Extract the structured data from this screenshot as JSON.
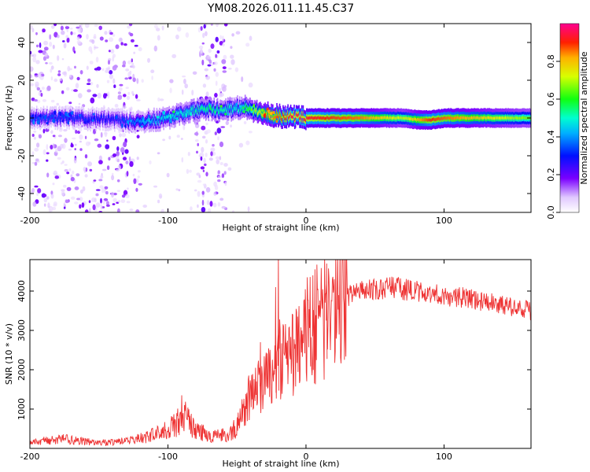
{
  "title": "YM08.2026.011.11.45.C37",
  "chart_data": [
    {
      "type": "heatmap",
      "name": "spectrogram",
      "xlabel": "Height of straight line (km)",
      "ylabel": "Frequency (Hz)",
      "xlim": [
        -200,
        163
      ],
      "ylim": [
        -50,
        50
      ],
      "xticks": [
        -200,
        -100,
        0,
        100
      ],
      "yticks": [
        -40,
        -20,
        0,
        20,
        40
      ],
      "colorbar": {
        "label": "Normalized spectral amplitude",
        "range": [
          0,
          1
        ],
        "ticks": [
          "0.0",
          "0.2",
          "0.4",
          "0.6",
          "0.8"
        ],
        "tick_values": [
          0,
          0.2,
          0.4,
          0.6,
          0.8
        ]
      },
      "band_center": [
        {
          "x": -200,
          "f": 0
        },
        {
          "x": -170,
          "f": 0
        },
        {
          "x": -140,
          "f": -1
        },
        {
          "x": -120,
          "f": -2
        },
        {
          "x": -100,
          "f": 0
        },
        {
          "x": -85,
          "f": 3
        },
        {
          "x": -75,
          "f": 5
        },
        {
          "x": -60,
          "f": 4
        },
        {
          "x": -45,
          "f": 6
        },
        {
          "x": -35,
          "f": 3
        },
        {
          "x": -20,
          "f": 1
        },
        {
          "x": 0,
          "f": 0
        },
        {
          "x": 30,
          "f": 0
        },
        {
          "x": 70,
          "f": 0
        },
        {
          "x": 80,
          "f": -1
        },
        {
          "x": 90,
          "f": -1
        },
        {
          "x": 100,
          "f": 0
        },
        {
          "x": 163,
          "f": 0
        }
      ],
      "band_amplitude": [
        {
          "x": -200,
          "a": 0.35
        },
        {
          "x": -140,
          "a": 0.3
        },
        {
          "x": -110,
          "a": 0.45
        },
        {
          "x": -70,
          "a": 0.55
        },
        {
          "x": -50,
          "a": 0.5
        },
        {
          "x": -30,
          "a": 0.8
        },
        {
          "x": -10,
          "a": 0.95
        },
        {
          "x": 40,
          "a": 0.85
        },
        {
          "x": 70,
          "a": 0.7
        },
        {
          "x": 90,
          "a": 0.9
        },
        {
          "x": 163,
          "a": 0.65
        }
      ],
      "noise_regions": [
        {
          "x_from": -200,
          "x_to": -120,
          "density": "high"
        },
        {
          "x_from": -80,
          "x_to": -58,
          "density": "high"
        },
        {
          "x_from": -120,
          "x_to": -40,
          "density": "low"
        }
      ]
    },
    {
      "type": "line",
      "name": "snr",
      "xlabel": "Height of straight line (km)",
      "ylabel": "SNR (10 * v/v)",
      "xlim": [
        -200,
        163
      ],
      "ylim": [
        0,
        4800
      ],
      "xticks": [
        -200,
        -100,
        0,
        100
      ],
      "yticks": [
        1000,
        2000,
        3000,
        4000
      ],
      "color": "#ee3333",
      "envelope": [
        {
          "x": -200,
          "y": 150
        },
        {
          "x": -175,
          "y": 250
        },
        {
          "x": -160,
          "y": 170
        },
        {
          "x": -140,
          "y": 150
        },
        {
          "x": -120,
          "y": 250
        },
        {
          "x": -105,
          "y": 400
        },
        {
          "x": -95,
          "y": 600
        },
        {
          "x": -88,
          "y": 800
        },
        {
          "x": -80,
          "y": 500
        },
        {
          "x": -70,
          "y": 300
        },
        {
          "x": -55,
          "y": 350
        },
        {
          "x": -48,
          "y": 700
        },
        {
          "x": -40,
          "y": 1300
        },
        {
          "x": -30,
          "y": 1700
        },
        {
          "x": -20,
          "y": 2100
        },
        {
          "x": -10,
          "y": 2400
        },
        {
          "x": 0,
          "y": 2700
        },
        {
          "x": 10,
          "y": 3000
        },
        {
          "x": 20,
          "y": 3500
        },
        {
          "x": 28,
          "y": 3800
        },
        {
          "x": 35,
          "y": 3950
        },
        {
          "x": 60,
          "y": 4100
        },
        {
          "x": 80,
          "y": 4000
        },
        {
          "x": 100,
          "y": 3900
        },
        {
          "x": 120,
          "y": 3800
        },
        {
          "x": 140,
          "y": 3650
        },
        {
          "x": 163,
          "y": 3500
        }
      ],
      "peaks": [
        {
          "x": -20,
          "y": 4900
        },
        {
          "x": -22,
          "y": 4100
        },
        {
          "x": 15,
          "y": 4700
        },
        {
          "x": 5,
          "y": 4400
        },
        {
          "x": -90,
          "y": 1350
        },
        {
          "x": -33,
          "y": 2700
        }
      ]
    }
  ]
}
